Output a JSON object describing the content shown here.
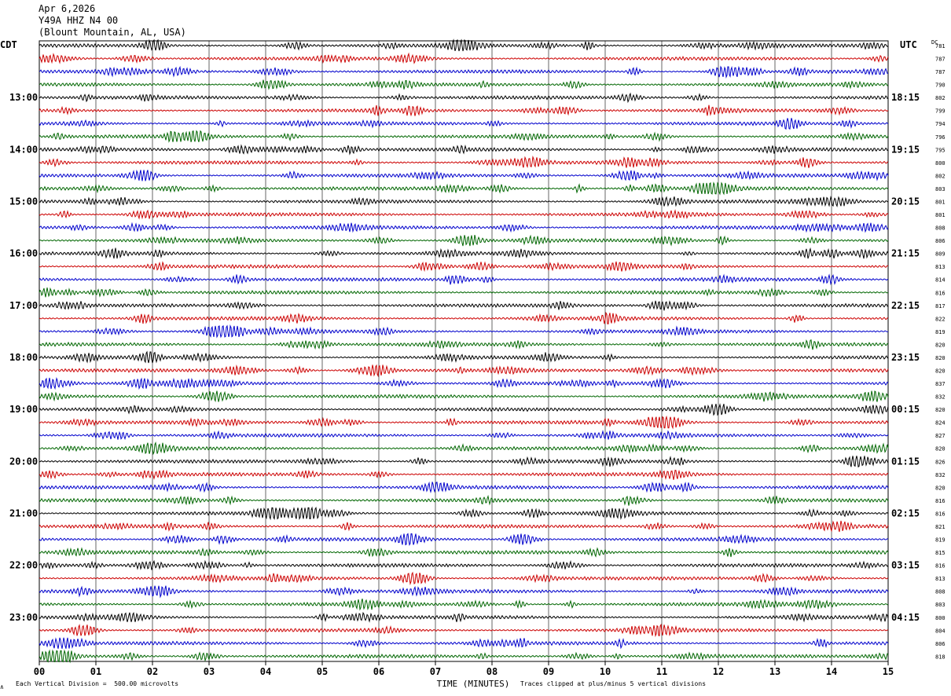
{
  "header": {
    "date": "Apr 6,2026",
    "station": "Y49A HHZ N4 00",
    "location": "(Blount Mountain, AL, USA)"
  },
  "left_axis_title": "CDT",
  "right_axis_title": "UTC",
  "dc_title": "DC",
  "footer": {
    "scale_note": "Each Vertical Division =  500.00 microvolts",
    "clip_note": "Traces clipped at plus/minus 5 vertical divisions",
    "corner_mark": "∧"
  },
  "colors": {
    "trace_cycle": [
      "#000000",
      "#cc0000",
      "#0000cc",
      "#006600"
    ],
    "grid": "#000000"
  },
  "chart_data": {
    "type": "line",
    "title": "",
    "xlabel": "TIME (MINUTES)",
    "xlim": [
      0,
      15
    ],
    "x_ticks": [
      "00",
      "01",
      "02",
      "03",
      "04",
      "05",
      "06",
      "07",
      "08",
      "09",
      "10",
      "11",
      "12",
      "13",
      "14",
      "15"
    ],
    "rows_per_hour": 4,
    "row_count": 48,
    "left_time_labels": [
      {
        "row": 4,
        "text": "13:00"
      },
      {
        "row": 8,
        "text": "14:00"
      },
      {
        "row": 12,
        "text": "15:00"
      },
      {
        "row": 16,
        "text": "16:00"
      },
      {
        "row": 20,
        "text": "17:00"
      },
      {
        "row": 24,
        "text": "18:00"
      },
      {
        "row": 28,
        "text": "19:00"
      },
      {
        "row": 32,
        "text": "20:00"
      },
      {
        "row": 36,
        "text": "21:00"
      },
      {
        "row": 40,
        "text": "22:00"
      },
      {
        "row": 44,
        "text": "23:00"
      }
    ],
    "right_time_labels": [
      {
        "row": 4,
        "text": "18:15"
      },
      {
        "row": 8,
        "text": "19:15"
      },
      {
        "row": 12,
        "text": "20:15"
      },
      {
        "row": 16,
        "text": "21:15"
      },
      {
        "row": 20,
        "text": "22:15"
      },
      {
        "row": 24,
        "text": "23:15"
      },
      {
        "row": 28,
        "text": "00:15"
      },
      {
        "row": 32,
        "text": "01:15"
      },
      {
        "row": 36,
        "text": "02:15"
      },
      {
        "row": 40,
        "text": "03:15"
      },
      {
        "row": 44,
        "text": "04:15"
      }
    ],
    "dc_offsets": [
      "781",
      "787",
      "787",
      "790",
      "802",
      "799",
      "794",
      "796",
      "795",
      "800",
      "802",
      "803",
      "801",
      "801",
      "808",
      "806",
      "809",
      "813",
      "814",
      "816",
      "817",
      "822",
      "819",
      "820",
      "820",
      "820",
      "837",
      "832",
      "820",
      "824",
      "827",
      "820",
      "826",
      "832",
      "820",
      "816",
      "816",
      "821",
      "819",
      "815",
      "816",
      "813",
      "808",
      "803",
      "800",
      "804",
      "806",
      "818"
    ]
  }
}
